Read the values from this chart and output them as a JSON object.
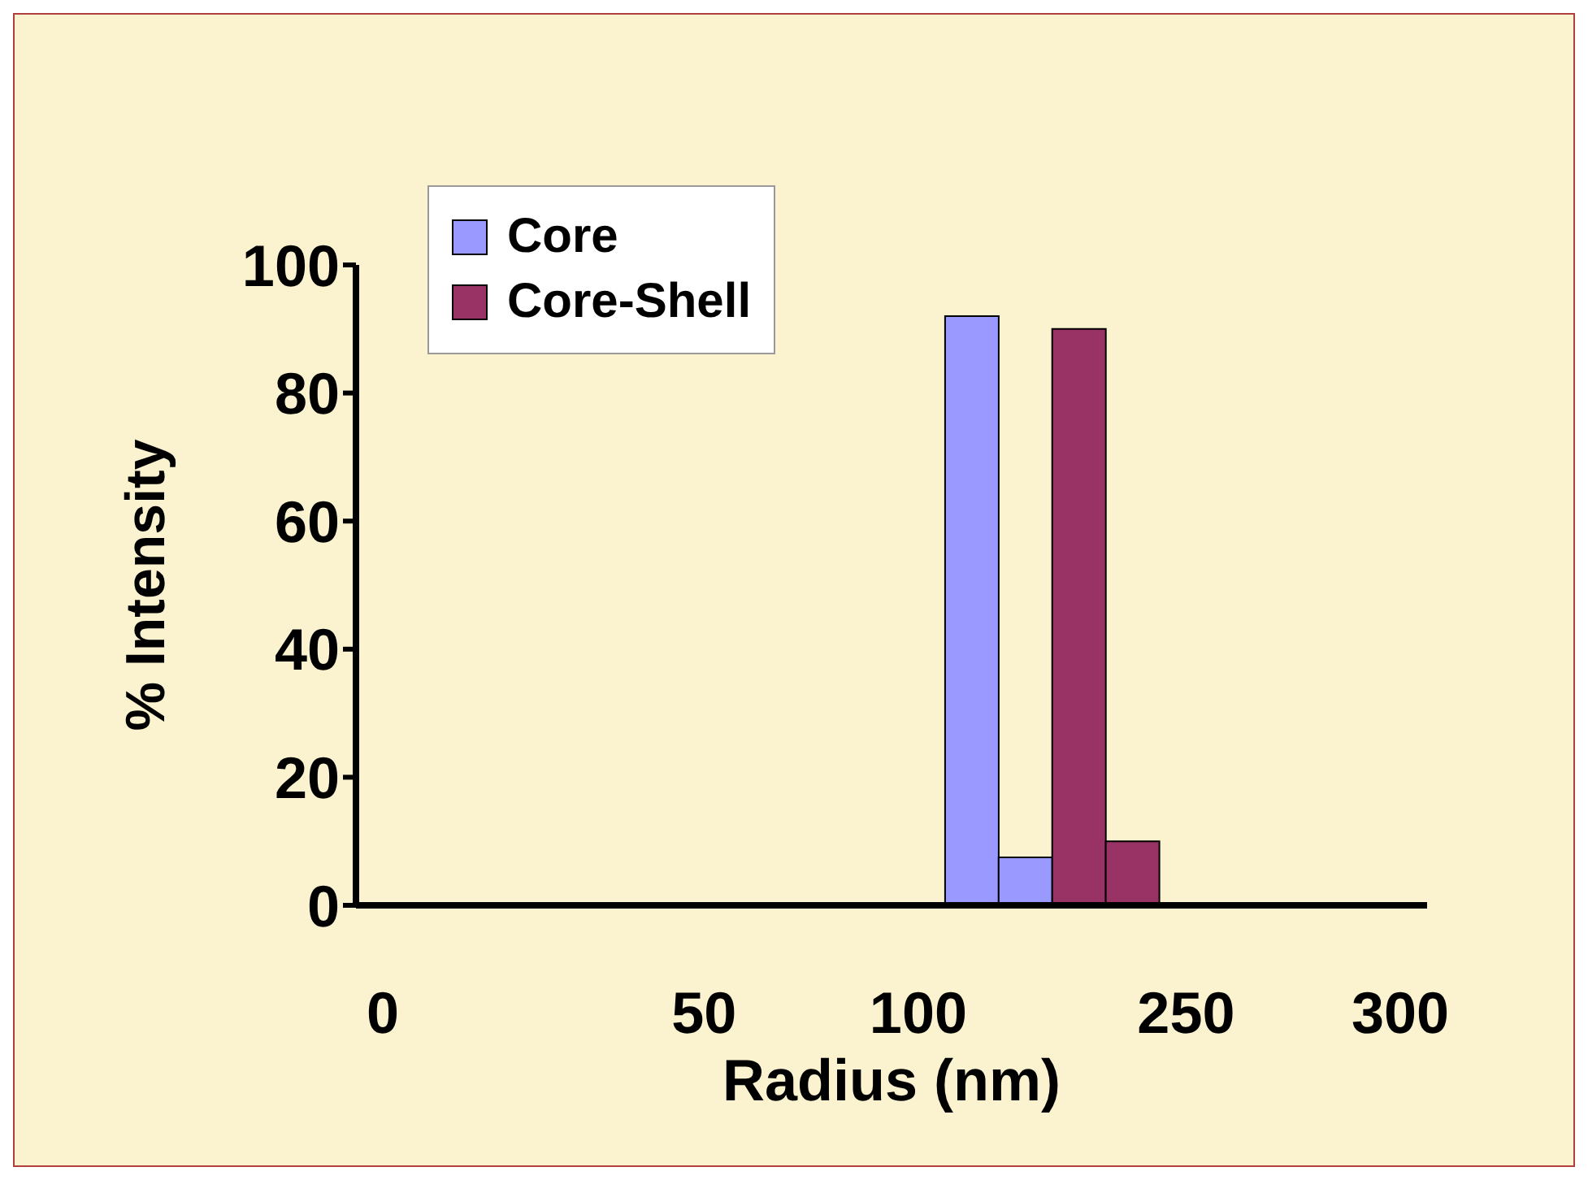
{
  "chart_data": {
    "type": "bar",
    "stacked": true,
    "xlabel": "Radius (nm)",
    "ylabel": "% Intensity",
    "categories": [
      "0",
      null,
      null,
      null,
      null,
      null,
      "50",
      null,
      null,
      null,
      "100",
      null,
      null,
      null,
      null,
      "250",
      null,
      null,
      null,
      "300"
    ],
    "series": [
      {
        "name": "Core",
        "color": "#9999ff",
        "values": [
          0,
          0,
          0,
          0,
          0,
          0,
          0,
          0,
          0,
          0,
          0,
          92,
          7.5,
          0,
          0,
          0,
          0,
          0,
          0,
          0
        ]
      },
      {
        "name": "Core-Shell",
        "color": "#993366",
        "values": [
          0,
          0,
          0,
          0,
          0,
          0,
          0,
          0,
          0,
          0,
          0,
          0,
          0,
          90,
          10,
          0,
          0,
          0,
          0,
          0
        ]
      }
    ],
    "ylim": [
      0,
      100
    ],
    "yticks": [
      0,
      20,
      40,
      60,
      80,
      100
    ],
    "grid": false,
    "legend": "top left"
  }
}
